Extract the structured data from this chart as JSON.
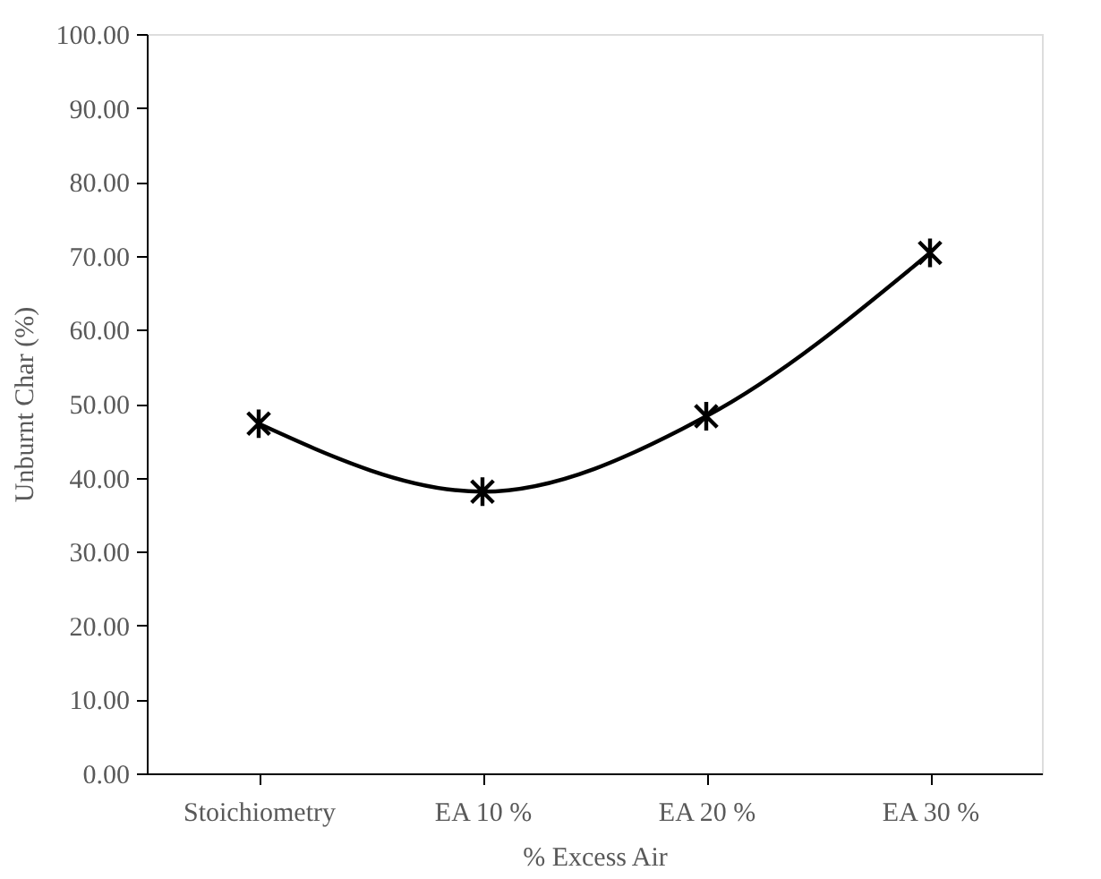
{
  "chart_data": {
    "type": "line",
    "xlabel": "% Excess Air",
    "ylabel": "Unburnt Char (%)",
    "categories": [
      "Stoichiometry",
      "EA 10 %",
      "EA 20 %",
      "EA 30 %"
    ],
    "series": [
      {
        "color": "#000000",
        "values": [
          47.3,
          38.1,
          48.3,
          70.4
        ]
      }
    ],
    "ylim": [
      0,
      100
    ],
    "yticks": [
      {
        "value": 0,
        "label": "0.00"
      },
      {
        "value": 10,
        "label": "10.00"
      },
      {
        "value": 20,
        "label": "20.00"
      },
      {
        "value": 30,
        "label": "30.00"
      },
      {
        "value": 40,
        "label": "40.00"
      },
      {
        "value": 50,
        "label": "50.00"
      },
      {
        "value": 60,
        "label": "60.00"
      },
      {
        "value": 70,
        "label": "70.00"
      },
      {
        "value": 80,
        "label": "80.00"
      },
      {
        "value": 90,
        "label": "90.00"
      },
      {
        "value": 100,
        "label": "100.00"
      }
    ],
    "grid": false,
    "marker": "cross",
    "line_style": "solid"
  }
}
